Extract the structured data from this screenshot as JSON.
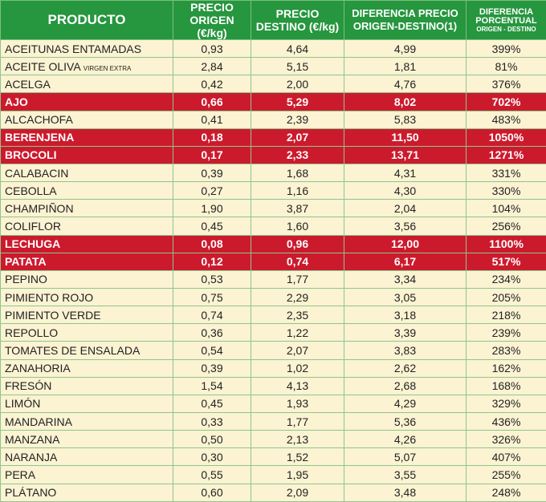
{
  "table": {
    "header": [
      [
        "PRODUCTO"
      ],
      [
        "PRECIO",
        "ORIGEN (€/kg)"
      ],
      [
        "PRECIO",
        "DESTINO (€/kg)"
      ],
      [
        "DIFERENCIA PRECIO",
        "ORIGEN-DESTINO(1)"
      ],
      [
        "DIFERENCIA",
        "PORCENTUAL",
        "ORIGEN - DESTINO"
      ]
    ],
    "highlighted_rows": [
      3,
      5,
      6,
      11,
      12
    ],
    "rows": [
      [
        "ACEITUNAS ENTAMADAS",
        "0,93",
        "4,64",
        "4,99",
        "399%"
      ],
      [
        {
          "text": "ACEITE OLIVA",
          "note": "VIRGEN EXTRA"
        },
        "2,84",
        "5,15",
        "1,81",
        "81%"
      ],
      [
        "ACELGA",
        "0,42",
        "2,00",
        "4,76",
        "376%"
      ],
      [
        "AJO",
        "0,66",
        "5,29",
        "8,02",
        "702%"
      ],
      [
        "ALCACHOFA",
        "0,41",
        "2,39",
        "5,83",
        "483%"
      ],
      [
        "BERENJENA",
        "0,18",
        "2,07",
        "11,50",
        "1050%"
      ],
      [
        "BROCOLI",
        "0,17",
        "2,33",
        "13,71",
        "1271%"
      ],
      [
        "CALABACIN",
        "0,39",
        "1,68",
        "4,31",
        "331%"
      ],
      [
        "CEBOLLA",
        "0,27",
        "1,16",
        "4,30",
        "330%"
      ],
      [
        "CHAMPIÑON",
        "1,90",
        "3,87",
        "2,04",
        "104%"
      ],
      [
        "COLIFLOR",
        "0,45",
        "1,60",
        "3,56",
        "256%"
      ],
      [
        "LECHUGA",
        "0,08",
        "0,96",
        "12,00",
        "1100%"
      ],
      [
        "PATATA",
        "0,12",
        "0,74",
        "6,17",
        "517%"
      ],
      [
        "PEPINO",
        "0,53",
        "1,77",
        "3,34",
        "234%"
      ],
      [
        "PIMIENTO ROJO",
        "0,75",
        "2,29",
        "3,05",
        "205%"
      ],
      [
        "PIMIENTO VERDE",
        "0,74",
        "2,35",
        "3,18",
        "218%"
      ],
      [
        "REPOLLO",
        "0,36",
        "1,22",
        "3,39",
        "239%"
      ],
      [
        "TOMATES DE ENSALADA",
        "0,54",
        "2,07",
        "3,83",
        "283%"
      ],
      [
        "ZANAHORIA",
        "0,39",
        "1,02",
        "2,62",
        "162%"
      ],
      [
        "FRESÓN",
        "1,54",
        "4,13",
        "2,68",
        "168%"
      ],
      [
        "LIMÓN",
        "0,45",
        "1,93",
        "4,29",
        "329%"
      ],
      [
        "MANDARINA",
        "0,33",
        "1,77",
        "5,36",
        "436%"
      ],
      [
        "MANZANA",
        "0,50",
        "2,13",
        "4,26",
        "326%"
      ],
      [
        "NARANJA",
        "0,30",
        "1,52",
        "5,07",
        "407%"
      ],
      [
        "PERA",
        "0,55",
        "1,95",
        "3,55",
        "255%"
      ],
      [
        "PLÁTANO",
        "0,60",
        "2,09",
        "3,48",
        "248%"
      ]
    ]
  }
}
